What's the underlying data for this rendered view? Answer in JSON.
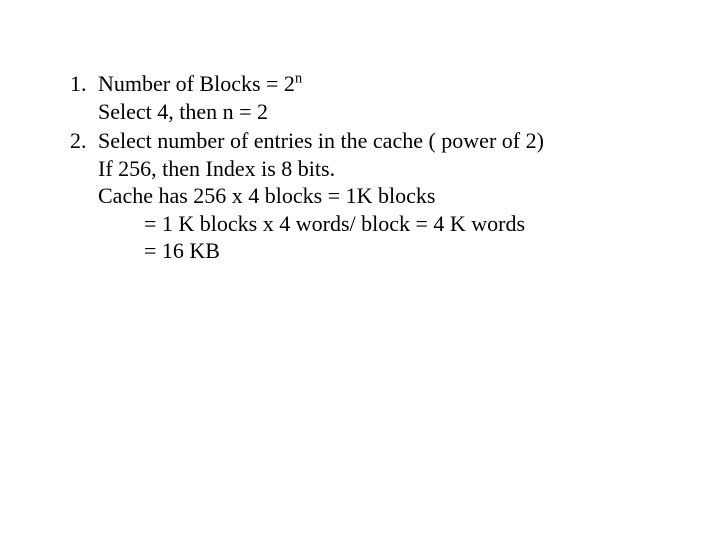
{
  "text_color": "#000000",
  "background_color": "#ffffff",
  "font_family": "Times New Roman",
  "font_size_pt": 22,
  "list": {
    "item1": {
      "line1_prefix": "Number of Blocks = 2",
      "line1_sup": "n",
      "line2": "Select 4, then n = 2"
    },
    "item2": {
      "line1": "Select number of entries in the cache ( power of 2)",
      "line2": "If 256, then Index is 8 bits.",
      "line3": "Cache has 256 x 4 blocks = 1K blocks",
      "line4": "= 1 K blocks x 4 words/ block = 4 K words",
      "line5": "= 16 KB"
    }
  }
}
